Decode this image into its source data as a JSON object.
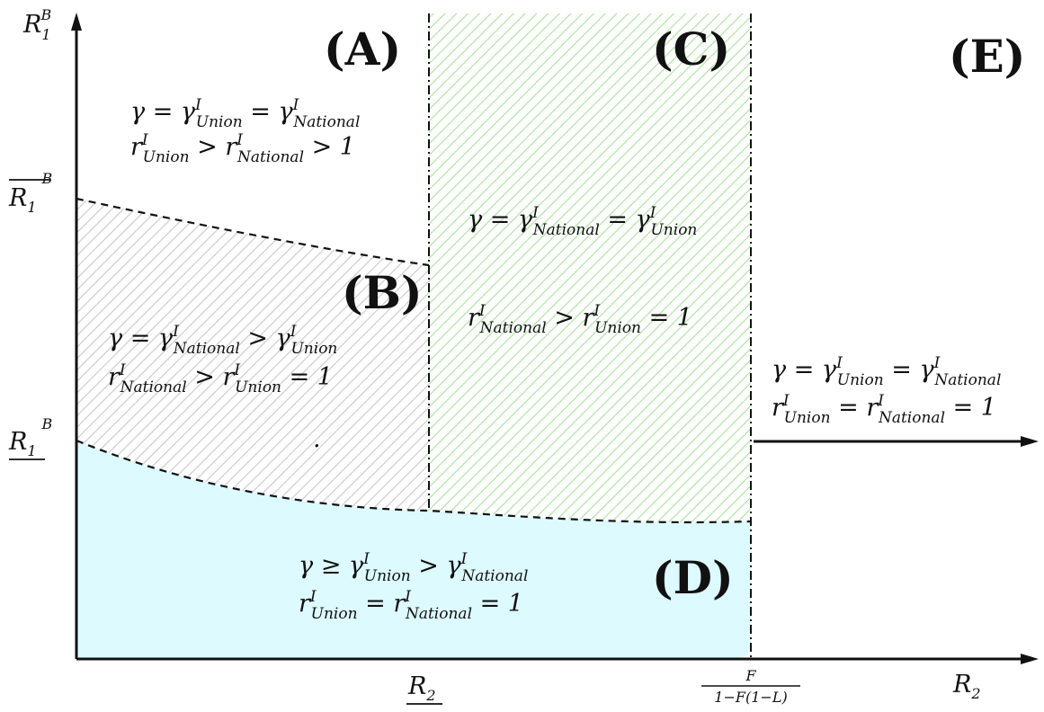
{
  "colors": {
    "region_d_fill": "#dcfaff",
    "region_b_hatch": "#c8c8c8",
    "region_c_hatch": "#a6e39a",
    "boundary": "#111111"
  },
  "axes": {
    "y_label": "R",
    "y_label_sub": "1",
    "y_label_sup": "B",
    "x_label": "R",
    "x_label_sub": "2",
    "y_tick_upper_main": "R",
    "y_tick_upper_sub": "1",
    "y_tick_upper_sup": "B",
    "y_tick_lower_main": "R",
    "y_tick_lower_sub": "1",
    "y_tick_lower_sup": "B",
    "x_tick_r2_main": "R",
    "x_tick_r2_sub": "2",
    "x_tick_frac_num": "F",
    "x_tick_frac_den": "1−F(1−L)"
  },
  "regions": {
    "A": {
      "label": "(A)",
      "line1": {
        "lhs": "γ = γ",
        "s1_sup": "I",
        "s1_sub": "Union",
        "mid": " = γ",
        "s2_sup": "I",
        "s2_sub": "National",
        "tail": ""
      },
      "line2": {
        "lhs": "r",
        "s1_sup": "I",
        "s1_sub": "Union",
        "mid": " > r",
        "s2_sup": "I",
        "s2_sub": "National",
        "tail": " > 1"
      }
    },
    "B": {
      "label": "(B)",
      "line1": {
        "lhs": "γ = γ",
        "s1_sup": "I",
        "s1_sub": "National",
        "mid": " > γ",
        "s2_sup": "I",
        "s2_sub": "Union",
        "tail": ""
      },
      "line2": {
        "lhs": "r",
        "s1_sup": "I",
        "s1_sub": "National",
        "mid": " > r",
        "s2_sup": "I",
        "s2_sub": "Union",
        "tail": " = 1"
      },
      "dot": "."
    },
    "C": {
      "label": "(C)",
      "line1": {
        "lhs": "γ = γ",
        "s1_sup": "I",
        "s1_sub": "National",
        "mid": " = γ",
        "s2_sup": "I",
        "s2_sub": "Union",
        "tail": ""
      },
      "line2": {
        "lhs": "r",
        "s1_sup": "I",
        "s1_sub": "National",
        "mid": " > r",
        "s2_sup": "I",
        "s2_sub": "Union",
        "tail": " = 1"
      }
    },
    "D": {
      "label": "(D)",
      "line1": {
        "lhs": "γ ≥ γ",
        "s1_sup": "I",
        "s1_sub": "Union",
        "mid": " > γ",
        "s2_sup": "I",
        "s2_sub": "National",
        "tail": ""
      },
      "line2": {
        "lhs": "r",
        "s1_sup": "I",
        "s1_sub": "Union",
        "mid": " = r",
        "s2_sup": "I",
        "s2_sub": "National",
        "tail": " = 1"
      }
    },
    "E": {
      "label": "(E)",
      "line1": {
        "lhs": "γ = γ",
        "s1_sup": "I",
        "s1_sub": "Union",
        "mid": " = γ",
        "s2_sup": "I",
        "s2_sub": "National",
        "tail": ""
      },
      "line2": {
        "lhs": "r",
        "s1_sup": "I",
        "s1_sub": "Union",
        "mid": " = r",
        "s2_sup": "I",
        "s2_sub": "National",
        "tail": " = 1"
      }
    }
  }
}
